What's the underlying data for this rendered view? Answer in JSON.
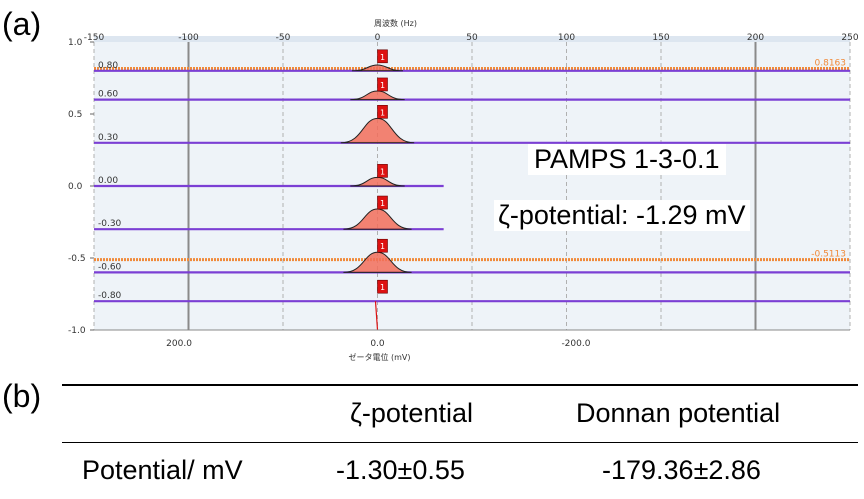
{
  "panel_a_label": "(a)",
  "panel_b_label": "(b)",
  "overlay": {
    "sample": "PAMPS 1-3-0.1",
    "zeta": "ζ-potential: -1.29 mV"
  },
  "chart_data": {
    "type": "line",
    "title": "",
    "top_axis_label": "周波数 (Hz)",
    "top_ticks": [
      "-150",
      "-100",
      "-50",
      "0",
      "50",
      "100",
      "150",
      "200",
      "250"
    ],
    "top_axis_range": [
      -150,
      250
    ],
    "xlabel": "ゼータ電位 (mV)",
    "bottom_ticks": [
      {
        "value": 200,
        "label": "200.0"
      },
      {
        "value": 0,
        "label": "0.0"
      },
      {
        "value": -200,
        "label": "-200.0"
      }
    ],
    "ylim": [
      -1.0,
      1.0
    ],
    "y_ticks": [
      "1.0",
      "0.5",
      "0.0",
      "-0.5",
      "-1.0"
    ],
    "y_tick_values": [
      1.0,
      0.5,
      0.0,
      -0.5,
      -1.0
    ],
    "grid": "vertical",
    "colors": {
      "baseline": "#7b3fd4",
      "orange_line": "#f08a3a",
      "peak_fill": "#f26d5b",
      "marker": "#dd1111",
      "panel_bg": "#eef3f8",
      "grid": "#999999"
    },
    "baselines": [
      {
        "label": "0.80",
        "y": 0.8,
        "x_end": 250
      },
      {
        "label": "0.60",
        "y": 0.6,
        "x_end": 250
      },
      {
        "label": "0.30",
        "y": 0.3,
        "x_end": 250
      },
      {
        "label": "0.00",
        "y": 0.0,
        "x_end": 35
      },
      {
        "label": "-0.30",
        "y": -0.3,
        "x_end": 35
      },
      {
        "label": "-0.60",
        "y": -0.6,
        "x_end": 250
      },
      {
        "label": "-0.80",
        "y": -0.8,
        "x_end": 250
      }
    ],
    "orange_lines": [
      {
        "label": "0.8163",
        "y": 0.8163
      },
      {
        "label": "-0.5113",
        "y": -0.5113
      }
    ],
    "peaks": [
      {
        "y": 0.8,
        "height": 0.04,
        "marker": "1"
      },
      {
        "y": 0.6,
        "height": 0.06,
        "marker": "1"
      },
      {
        "y": 0.3,
        "height": 0.17,
        "marker": "1"
      },
      {
        "y": 0.0,
        "height": 0.06,
        "marker": "1"
      },
      {
        "y": -0.3,
        "height": 0.14,
        "marker": "1"
      },
      {
        "y": -0.6,
        "height": 0.14,
        "marker": "1"
      },
      {
        "y": -0.8,
        "height": 0.0,
        "marker": "1"
      }
    ]
  },
  "table": {
    "headers": [
      "",
      "ζ-potential",
      "Donnan potential"
    ],
    "rows": [
      [
        "Potential/ mV",
        "-1.30±0.55",
        "-179.36±2.86"
      ]
    ]
  }
}
